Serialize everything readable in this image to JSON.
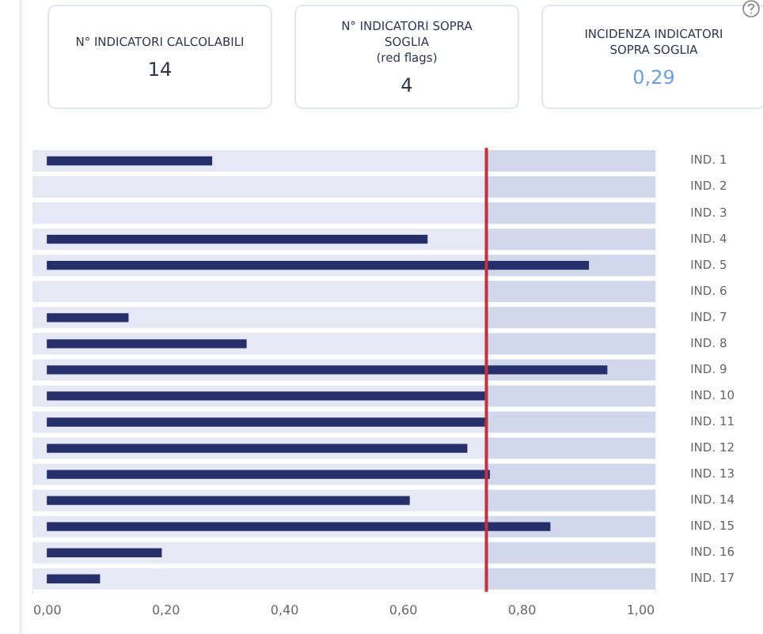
{
  "chart_data": [
    {
      "type": "other",
      "categories": [
        "N° INDICATORI CALCOLABILI",
        "N° INDICATORI SOPRA SOGLIA\n(red flags)",
        "INCIDENZA INDICATORI SOPRA SOGLIA"
      ],
      "values": [
        14,
        4,
        0.29
      ],
      "value_labels": [
        "14",
        "4",
        "0,29"
      ],
      "colors": [
        "#2e3550",
        "#2e3550",
        "#6a9fde"
      ]
    },
    {
      "type": "bar",
      "orientation": "horizontal",
      "categories": [
        "IND. 1",
        "IND. 2",
        "IND. 3",
        "IND. 4",
        "IND. 5",
        "IND. 6",
        "IND. 7",
        "IND. 8",
        "IND. 9",
        "IND. 10",
        "IND. 11",
        "IND. 12",
        "IND. 13",
        "IND. 14",
        "IND. 15",
        "IND. 16",
        "IND. 17"
      ],
      "values": [
        0.277,
        null,
        null,
        0.64,
        0.912,
        null,
        0.136,
        0.335,
        0.943,
        0.738,
        0.738,
        0.707,
        0.745,
        0.61,
        0.847,
        0.192,
        0.088
      ],
      "color": "#25306b",
      "xlim": [
        -0.025,
        1.025
      ],
      "xticks": [
        {
          "value": 0,
          "label": "0,00"
        },
        {
          "value": 0.2,
          "label": "0,20"
        },
        {
          "value": 0.4,
          "label": "0,40"
        },
        {
          "value": 0.6,
          "label": "0,60"
        },
        {
          "value": 0.8,
          "label": "0,80"
        },
        {
          "value": 1,
          "label": "1,00"
        }
      ],
      "ref_lines": [
        {
          "axis": "x",
          "value": 0.74,
          "color": "#c2323c"
        }
      ],
      "bands": [
        {
          "axis": "x",
          "from": 0.74,
          "to": 1.025,
          "color": "#d2d8ec"
        }
      ],
      "grid": false,
      "legend": false
    }
  ]
}
